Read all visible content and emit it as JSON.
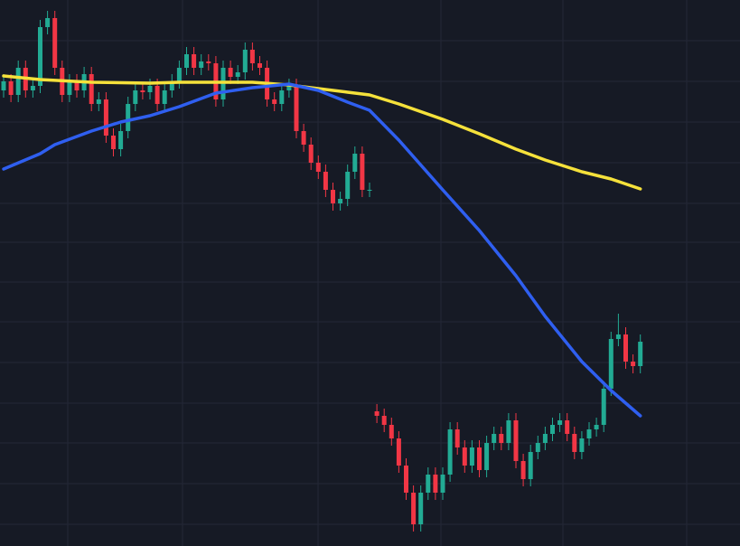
{
  "chart_data": {
    "type": "candlestick",
    "up_color": "#22ab94",
    "down_color": "#f23645",
    "grid": true,
    "ylim": [
      -4,
      600
    ],
    "xlim": [
      -0.5,
      100.5
    ],
    "open": [
      500,
      510,
      495,
      525,
      500,
      505,
      570,
      580,
      525,
      495,
      510,
      500,
      518,
      485,
      490,
      450,
      435,
      455,
      485,
      500,
      498,
      505,
      485,
      500,
      510,
      525,
      540,
      525,
      532,
      530,
      490,
      525,
      515,
      520,
      545,
      530,
      525,
      490,
      485,
      500,
      505,
      455,
      440,
      420,
      410,
      390,
      375,
      380,
      410,
      430,
      390,
      145,
      140,
      130,
      115,
      85,
      55,
      20,
      55,
      75,
      55,
      75,
      125,
      105,
      85,
      105,
      80,
      110,
      120,
      110,
      135,
      90,
      70,
      100,
      110,
      120,
      130,
      135,
      120,
      100,
      115,
      125,
      130,
      170,
      225,
      230,
      200,
      195
    ],
    "high": [
      518,
      518,
      533,
      533,
      513,
      578,
      588,
      588,
      533,
      518,
      518,
      526,
      526,
      498,
      498,
      458,
      463,
      493,
      508,
      508,
      513,
      513,
      508,
      518,
      533,
      548,
      548,
      540,
      540,
      538,
      533,
      533,
      528,
      553,
      553,
      538,
      533,
      498,
      508,
      513,
      513,
      463,
      448,
      428,
      418,
      398,
      388,
      418,
      438,
      438,
      398,
      153,
      148,
      138,
      123,
      93,
      63,
      63,
      83,
      83,
      83,
      133,
      133,
      113,
      113,
      113,
      118,
      128,
      128,
      143,
      143,
      98,
      108,
      118,
      128,
      138,
      143,
      143,
      128,
      123,
      133,
      138,
      178,
      233,
      253,
      238,
      208,
      230
    ],
    "low": [
      492,
      487,
      487,
      492,
      492,
      497,
      562,
      517,
      487,
      487,
      492,
      492,
      477,
      477,
      442,
      427,
      427,
      447,
      477,
      490,
      490,
      477,
      477,
      492,
      502,
      517,
      517,
      517,
      522,
      482,
      482,
      507,
      507,
      512,
      522,
      517,
      482,
      477,
      477,
      492,
      447,
      432,
      412,
      402,
      382,
      367,
      367,
      372,
      402,
      382,
      382,
      132,
      122,
      107,
      77,
      47,
      12,
      12,
      47,
      47,
      47,
      67,
      97,
      77,
      77,
      72,
      72,
      102,
      102,
      102,
      82,
      62,
      62,
      92,
      102,
      112,
      122,
      112,
      92,
      92,
      107,
      117,
      122,
      162,
      217,
      192,
      187,
      187
    ],
    "close": [
      510,
      495,
      525,
      500,
      505,
      570,
      580,
      525,
      495,
      510,
      500,
      518,
      485,
      490,
      450,
      435,
      455,
      485,
      500,
      498,
      505,
      485,
      500,
      510,
      525,
      540,
      525,
      532,
      530,
      490,
      525,
      515,
      520,
      545,
      530,
      525,
      490,
      485,
      500,
      505,
      455,
      440,
      420,
      410,
      390,
      375,
      380,
      410,
      430,
      390,
      390,
      140,
      130,
      115,
      85,
      55,
      20,
      55,
      75,
      55,
      75,
      125,
      105,
      85,
      105,
      80,
      110,
      120,
      110,
      135,
      90,
      70,
      100,
      110,
      120,
      130,
      135,
      120,
      100,
      115,
      125,
      130,
      170,
      225,
      230,
      200,
      195,
      222
    ],
    "series": [
      {
        "color": "#f5e13b",
        "x": [
          0,
          5,
          12,
          20,
          24,
          34,
          39,
          43,
          47,
          50,
          54,
          60,
          65,
          70,
          74,
          79,
          83,
          87
        ],
        "values": [
          516,
          512,
          509,
          508,
          509,
          509,
          506,
          502,
          498,
          495,
          485,
          468,
          452,
          435,
          423,
          410,
          402,
          391
        ]
      },
      {
        "color": "#2f5ff0",
        "x": [
          0,
          5,
          7,
          12,
          16,
          20,
          24,
          29,
          34,
          39,
          43,
          47,
          50,
          54,
          60,
          65,
          70,
          74,
          79,
          83,
          87
        ],
        "values": [
          413,
          430,
          440,
          455,
          465,
          472,
          482,
          497,
          503,
          507,
          500,
          487,
          478,
          445,
          390,
          345,
          295,
          250,
          200,
          168,
          140
        ]
      }
    ]
  }
}
